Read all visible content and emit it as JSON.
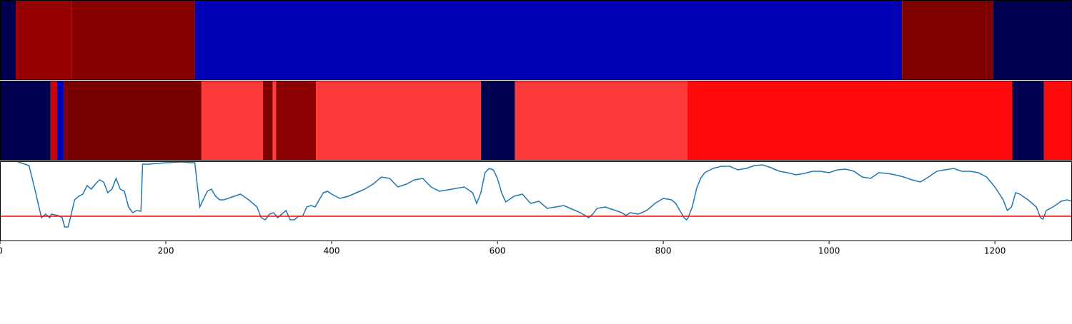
{
  "chart_data": [
    {
      "type": "timeline",
      "xlim": [
        0,
        1293
      ],
      "edges": [
        0,
        19,
        86,
        235,
        1088,
        1198,
        1293
      ],
      "colors": [
        "#000050",
        "#960000",
        "#880000",
        "#0000b4",
        "#800000",
        "#000050"
      ]
    },
    {
      "type": "timeline",
      "xlim": [
        0,
        1293
      ],
      "edges": [
        0,
        61,
        69,
        77,
        243,
        317,
        329,
        333,
        381,
        580,
        621,
        829,
        1221,
        1259,
        1293
      ],
      "colors": [
        "#000050",
        "#cc0000",
        "#0000b4",
        "#7a0000",
        "#ff3a3a",
        "#800000",
        "#ff3a3a",
        "#8b0000",
        "#ff3a3a",
        "#000050",
        "#ff3a3a",
        "#ff0a0a",
        "#000050",
        "#ff0a0a"
      ]
    },
    {
      "type": "line",
      "xlim": [
        0,
        1293
      ],
      "ylim": [
        0,
        112
      ],
      "xticks": [
        0,
        200,
        400,
        600,
        800,
        1000,
        1200
      ],
      "threshold": 35,
      "threshold_color": "#ff0000",
      "series": [
        {
          "color": "#1f77b4",
          "x": [
            0,
            20,
            35,
            42,
            47,
            50,
            55,
            60,
            62,
            70,
            75,
            78,
            82,
            85,
            90,
            95,
            100,
            105,
            110,
            115,
            120,
            125,
            130,
            135,
            140,
            145,
            150,
            155,
            160,
            165,
            170,
            172,
            180,
            200,
            220,
            230,
            235,
            238,
            241,
            245,
            250,
            255,
            260,
            265,
            270,
            280,
            290,
            300,
            310,
            315,
            320,
            325,
            330,
            335,
            340,
            345,
            350,
            355,
            360,
            365,
            370,
            375,
            380,
            385,
            390,
            395,
            400,
            410,
            420,
            430,
            440,
            450,
            460,
            470,
            480,
            490,
            500,
            510,
            520,
            530,
            540,
            550,
            560,
            570,
            575,
            580,
            585,
            590,
            595,
            600,
            605,
            610,
            620,
            630,
            640,
            650,
            660,
            670,
            680,
            690,
            700,
            710,
            715,
            720,
            730,
            740,
            750,
            755,
            760,
            770,
            780,
            790,
            800,
            810,
            815,
            820,
            825,
            828,
            830,
            835,
            840,
            845,
            850,
            860,
            870,
            880,
            890,
            900,
            910,
            920,
            930,
            940,
            950,
            960,
            970,
            980,
            990,
            1000,
            1010,
            1020,
            1030,
            1040,
            1050,
            1060,
            1070,
            1080,
            1090,
            1100,
            1110,
            1120,
            1130,
            1140,
            1150,
            1160,
            1170,
            1180,
            1190,
            1200,
            1210,
            1215,
            1220,
            1225,
            1230,
            1240,
            1245,
            1250,
            1255,
            1258,
            1262,
            1270,
            1280,
            1287,
            1293
          ],
          "values": [
            112,
            112,
            106,
            73,
            48,
            33,
            38,
            33,
            38,
            36,
            33,
            20,
            20,
            33,
            58,
            63,
            66,
            78,
            73,
            80,
            86,
            83,
            68,
            73,
            88,
            73,
            70,
            48,
            40,
            43,
            42,
            108,
            108,
            110,
            111,
            110,
            110,
            78,
            48,
            58,
            70,
            73,
            63,
            58,
            58,
            62,
            66,
            58,
            48,
            33,
            30,
            38,
            40,
            33,
            38,
            43,
            30,
            30,
            35,
            35,
            48,
            50,
            48,
            58,
            68,
            70,
            66,
            60,
            63,
            68,
            73,
            80,
            90,
            88,
            76,
            80,
            86,
            88,
            76,
            70,
            72,
            74,
            76,
            68,
            53,
            68,
            96,
            102,
            100,
            88,
            68,
            55,
            63,
            66,
            53,
            56,
            46,
            48,
            50,
            45,
            40,
            33,
            38,
            46,
            48,
            44,
            40,
            36,
            40,
            38,
            43,
            53,
            60,
            58,
            53,
            43,
            33,
            30,
            33,
            48,
            73,
            88,
            96,
            102,
            105,
            105,
            100,
            102,
            106,
            107,
            103,
            98,
            96,
            93,
            95,
            98,
            98,
            96,
            100,
            101,
            98,
            90,
            88,
            96,
            95,
            93,
            90,
            86,
            83,
            90,
            98,
            100,
            102,
            98,
            98,
            96,
            90,
            76,
            58,
            43,
            48,
            68,
            66,
            58,
            53,
            48,
            33,
            31,
            43,
            48,
            56,
            58,
            56
          ]
        }
      ]
    }
  ]
}
